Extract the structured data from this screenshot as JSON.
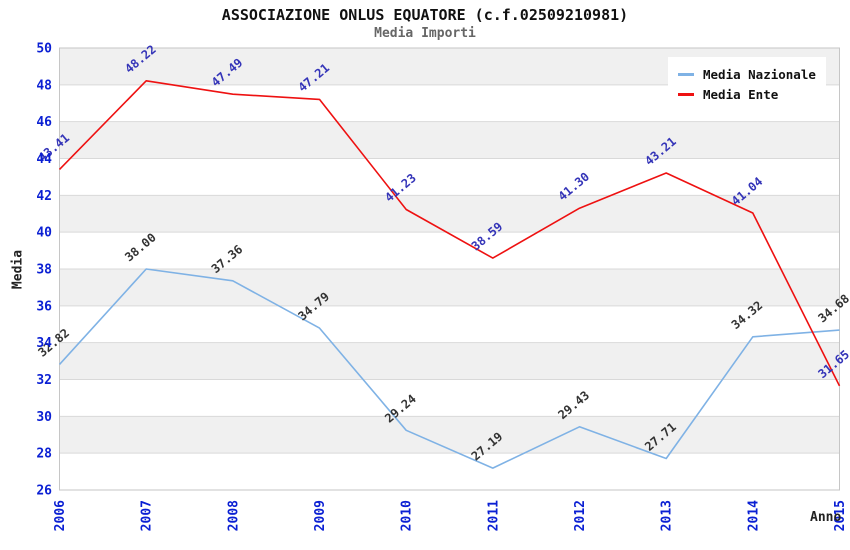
{
  "chart_data": {
    "type": "line",
    "title": "ASSOCIAZIONE ONLUS EQUATORE (c.f.02509210981)",
    "subtitle": "Media Importi",
    "xlabel": "Anno",
    "ylabel": "Media",
    "categories": [
      "2006",
      "2007",
      "2008",
      "2009",
      "2010",
      "2011",
      "2012",
      "2013",
      "2014",
      "2015"
    ],
    "ylim": [
      26,
      50
    ],
    "ytick_step": 2,
    "grid": "alternating-horizontal-bands",
    "legend_position": "top-right-inside",
    "series": [
      {
        "name": "Media Nazionale",
        "color": "#7fb2e5",
        "label_color": "#333333",
        "values": [
          32.82,
          38.0,
          37.36,
          34.79,
          29.24,
          27.19,
          29.43,
          27.71,
          34.32,
          34.68
        ]
      },
      {
        "name": "Media Ente",
        "color": "#ee1111",
        "label_color": "#3434b8",
        "values": [
          43.41,
          48.22,
          47.49,
          47.21,
          41.23,
          38.59,
          41.3,
          43.21,
          41.04,
          31.65
        ]
      }
    ]
  },
  "colors": {
    "axis_tick": "#0a1fd3",
    "band_gray": "#f0f0f0",
    "band_white": "#ffffff",
    "gridline": "#d9d9d9",
    "plot_border": "#c6c6c6"
  }
}
